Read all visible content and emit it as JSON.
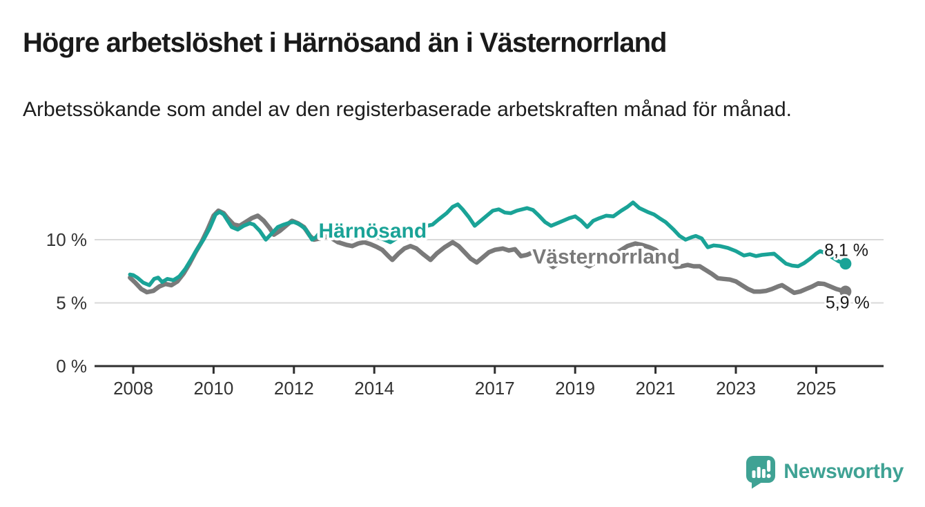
{
  "header": {
    "title": "Högre arbetslöshet i Härnösand än i Västernorrland",
    "subtitle": "Arbetssökande som andel av den registerbaserade arbetskraften månad för månad."
  },
  "chart_data": {
    "type": "line",
    "title": "Högre arbetslöshet i Härnösand än i Västernorrland",
    "subtitle": "Arbetssökande som andel av den registerbaserade arbetskraften månad för månad.",
    "xlabel": "",
    "ylabel": "",
    "xlim": [
      2007.038,
      2026.677
    ],
    "ylim": [
      0,
      14.32
    ],
    "grid": "horizontal",
    "legend_position": "inline-labels",
    "axis_color": "#2e2e2e",
    "grid_color": "#d9d9d9",
    "tick_label_color": "#333333",
    "value_label_color": "#1a1a1a",
    "x_ticks": [
      {
        "value": 2008,
        "label": "2008"
      },
      {
        "value": 2010,
        "label": "2010"
      },
      {
        "value": 2012,
        "label": "2012"
      },
      {
        "value": 2014,
        "label": "2014"
      },
      {
        "value": 2017,
        "label": "2017"
      },
      {
        "value": 2019,
        "label": "2019"
      },
      {
        "value": 2021,
        "label": "2021"
      },
      {
        "value": 2023,
        "label": "2023"
      },
      {
        "value": 2025,
        "label": "2025"
      }
    ],
    "y_ticks": [
      {
        "value": 0,
        "label": "0 %"
      },
      {
        "value": 5,
        "label": "5 %"
      },
      {
        "value": 10,
        "label": "10 %"
      }
    ],
    "series": [
      {
        "name": "Härnösand",
        "color": "#1AA397",
        "line_width": 5.5,
        "label_pos": {
          "t": 2013.96,
          "v": 10.7
        },
        "end_label": "8,1 %",
        "end_label_pos": {
          "t": 2025.75,
          "v": 9.2
        },
        "end_dot": {
          "t": 2025.73,
          "v": 8.1,
          "radius": 8.5
        },
        "points": [
          [
            2007.92,
            7.25
          ],
          [
            2008.0,
            7.2
          ],
          [
            2008.1,
            7.0
          ],
          [
            2008.25,
            6.6
          ],
          [
            2008.4,
            6.4
          ],
          [
            2008.52,
            6.9
          ],
          [
            2008.62,
            7.0
          ],
          [
            2008.72,
            6.65
          ],
          [
            2008.85,
            6.9
          ],
          [
            2009.0,
            6.8
          ],
          [
            2009.15,
            7.1
          ],
          [
            2009.3,
            7.7
          ],
          [
            2009.45,
            8.5
          ],
          [
            2009.6,
            9.3
          ],
          [
            2009.75,
            10.0
          ],
          [
            2009.9,
            10.9
          ],
          [
            2010.05,
            12.0
          ],
          [
            2010.15,
            12.2
          ],
          [
            2010.25,
            12.0
          ],
          [
            2010.35,
            11.5
          ],
          [
            2010.45,
            11.0
          ],
          [
            2010.6,
            10.8
          ],
          [
            2010.75,
            11.1
          ],
          [
            2010.9,
            11.3
          ],
          [
            2011.0,
            11.2
          ],
          [
            2011.15,
            10.7
          ],
          [
            2011.3,
            10.0
          ],
          [
            2011.45,
            10.5
          ],
          [
            2011.6,
            11.0
          ],
          [
            2011.75,
            11.2
          ],
          [
            2011.9,
            11.35
          ],
          [
            2012.0,
            11.4
          ],
          [
            2012.15,
            11.2
          ],
          [
            2012.3,
            10.8
          ],
          [
            2012.45,
            10.0
          ],
          [
            2012.55,
            10.2
          ],
          [
            2012.7,
            10.8
          ],
          [
            2012.85,
            10.6
          ],
          [
            2013.0,
            10.3
          ],
          [
            2013.15,
            10.2
          ],
          [
            2013.3,
            10.4
          ],
          [
            2013.5,
            10.6
          ],
          [
            2013.65,
            10.75
          ],
          [
            2013.8,
            10.6
          ],
          [
            2013.95,
            10.45
          ],
          [
            2014.1,
            10.2
          ],
          [
            2014.25,
            10.0
          ],
          [
            2014.4,
            9.8
          ],
          [
            2014.55,
            10.1
          ],
          [
            2014.7,
            10.4
          ],
          [
            2014.85,
            10.7
          ],
          [
            2015.0,
            10.9
          ],
          [
            2015.2,
            11.0
          ],
          [
            2015.45,
            11.2
          ],
          [
            2015.6,
            11.6
          ],
          [
            2015.8,
            12.1
          ],
          [
            2015.95,
            12.6
          ],
          [
            2016.08,
            12.8
          ],
          [
            2016.2,
            12.4
          ],
          [
            2016.35,
            11.8
          ],
          [
            2016.5,
            11.1
          ],
          [
            2016.65,
            11.5
          ],
          [
            2016.8,
            11.9
          ],
          [
            2016.95,
            12.3
          ],
          [
            2017.1,
            12.4
          ],
          [
            2017.25,
            12.15
          ],
          [
            2017.4,
            12.1
          ],
          [
            2017.55,
            12.3
          ],
          [
            2017.8,
            12.5
          ],
          [
            2017.95,
            12.35
          ],
          [
            2018.1,
            11.9
          ],
          [
            2018.25,
            11.4
          ],
          [
            2018.4,
            11.1
          ],
          [
            2018.55,
            11.3
          ],
          [
            2018.7,
            11.5
          ],
          [
            2018.85,
            11.7
          ],
          [
            2019.0,
            11.85
          ],
          [
            2019.15,
            11.5
          ],
          [
            2019.3,
            11.0
          ],
          [
            2019.45,
            11.5
          ],
          [
            2019.6,
            11.7
          ],
          [
            2019.77,
            11.9
          ],
          [
            2019.95,
            11.85
          ],
          [
            2020.15,
            12.3
          ],
          [
            2020.3,
            12.6
          ],
          [
            2020.44,
            12.95
          ],
          [
            2020.6,
            12.5
          ],
          [
            2020.8,
            12.2
          ],
          [
            2020.96,
            12.0
          ],
          [
            2021.1,
            11.7
          ],
          [
            2021.25,
            11.4
          ],
          [
            2021.45,
            10.8
          ],
          [
            2021.6,
            10.3
          ],
          [
            2021.75,
            10.0
          ],
          [
            2021.9,
            10.2
          ],
          [
            2022.0,
            10.3
          ],
          [
            2022.15,
            10.1
          ],
          [
            2022.3,
            9.4
          ],
          [
            2022.45,
            9.55
          ],
          [
            2022.6,
            9.5
          ],
          [
            2022.8,
            9.35
          ],
          [
            2023.0,
            9.1
          ],
          [
            2023.2,
            8.75
          ],
          [
            2023.35,
            8.85
          ],
          [
            2023.5,
            8.7
          ],
          [
            2023.65,
            8.8
          ],
          [
            2023.8,
            8.85
          ],
          [
            2023.95,
            8.9
          ],
          [
            2024.1,
            8.5
          ],
          [
            2024.25,
            8.1
          ],
          [
            2024.4,
            7.95
          ],
          [
            2024.55,
            7.9
          ],
          [
            2024.7,
            8.15
          ],
          [
            2024.85,
            8.5
          ],
          [
            2025.0,
            8.9
          ],
          [
            2025.1,
            9.1
          ],
          [
            2025.25,
            8.9
          ],
          [
            2025.4,
            8.6
          ],
          [
            2025.55,
            8.3
          ],
          [
            2025.73,
            8.1
          ]
        ]
      },
      {
        "name": "Västernorrland",
        "color": "#7A7A7A",
        "line_width": 6.5,
        "label_pos": {
          "t": 2019.77,
          "v": 8.65
        },
        "end_label": "5,9 %",
        "end_label_pos": {
          "t": 2025.78,
          "v": 5.05
        },
        "end_dot": {
          "t": 2025.73,
          "v": 5.9,
          "radius": 8.5
        },
        "points": [
          [
            2007.92,
            7.0
          ],
          [
            2008.05,
            6.6
          ],
          [
            2008.2,
            6.1
          ],
          [
            2008.34,
            5.85
          ],
          [
            2008.5,
            5.95
          ],
          [
            2008.65,
            6.3
          ],
          [
            2008.8,
            6.5
          ],
          [
            2008.95,
            6.4
          ],
          [
            2009.1,
            6.7
          ],
          [
            2009.25,
            7.3
          ],
          [
            2009.4,
            8.1
          ],
          [
            2009.55,
            9.0
          ],
          [
            2009.7,
            9.8
          ],
          [
            2009.85,
            10.8
          ],
          [
            2010.0,
            11.9
          ],
          [
            2010.12,
            12.3
          ],
          [
            2010.25,
            12.1
          ],
          [
            2010.35,
            11.7
          ],
          [
            2010.5,
            11.2
          ],
          [
            2010.65,
            11.1
          ],
          [
            2010.8,
            11.4
          ],
          [
            2010.95,
            11.7
          ],
          [
            2011.1,
            11.9
          ],
          [
            2011.25,
            11.5
          ],
          [
            2011.4,
            10.9
          ],
          [
            2011.5,
            10.4
          ],
          [
            2011.65,
            10.7
          ],
          [
            2011.8,
            11.1
          ],
          [
            2011.95,
            11.5
          ],
          [
            2012.1,
            11.3
          ],
          [
            2012.25,
            11.0
          ],
          [
            2012.4,
            10.3
          ],
          [
            2012.5,
            10.0
          ],
          [
            2012.65,
            10.1
          ],
          [
            2012.8,
            10.25
          ],
          [
            2012.95,
            10.1
          ],
          [
            2013.1,
            9.8
          ],
          [
            2013.3,
            9.6
          ],
          [
            2013.45,
            9.5
          ],
          [
            2013.6,
            9.7
          ],
          [
            2013.75,
            9.8
          ],
          [
            2013.9,
            9.65
          ],
          [
            2014.05,
            9.45
          ],
          [
            2014.2,
            9.2
          ],
          [
            2014.35,
            8.7
          ],
          [
            2014.45,
            8.4
          ],
          [
            2014.6,
            8.9
          ],
          [
            2014.75,
            9.3
          ],
          [
            2014.9,
            9.5
          ],
          [
            2015.05,
            9.3
          ],
          [
            2015.2,
            8.9
          ],
          [
            2015.4,
            8.4
          ],
          [
            2015.55,
            8.9
          ],
          [
            2015.75,
            9.4
          ],
          [
            2015.95,
            9.8
          ],
          [
            2016.1,
            9.5
          ],
          [
            2016.25,
            9.0
          ],
          [
            2016.4,
            8.5
          ],
          [
            2016.55,
            8.2
          ],
          [
            2016.7,
            8.6
          ],
          [
            2016.85,
            9.0
          ],
          [
            2017.0,
            9.2
          ],
          [
            2017.2,
            9.3
          ],
          [
            2017.35,
            9.15
          ],
          [
            2017.5,
            9.25
          ],
          [
            2017.65,
            8.7
          ],
          [
            2017.8,
            8.8
          ],
          [
            2017.95,
            9.0
          ],
          [
            2018.1,
            8.8
          ],
          [
            2018.3,
            8.2
          ],
          [
            2018.45,
            7.85
          ],
          [
            2018.6,
            8.2
          ],
          [
            2018.75,
            8.5
          ],
          [
            2018.9,
            8.6
          ],
          [
            2019.05,
            8.4
          ],
          [
            2019.2,
            8.1
          ],
          [
            2019.35,
            7.9
          ],
          [
            2019.5,
            8.2
          ],
          [
            2019.65,
            8.4
          ],
          [
            2019.8,
            8.6
          ],
          [
            2019.95,
            8.8
          ],
          [
            2020.1,
            9.1
          ],
          [
            2020.3,
            9.5
          ],
          [
            2020.5,
            9.7
          ],
          [
            2020.65,
            9.6
          ],
          [
            2020.85,
            9.4
          ],
          [
            2021.0,
            9.2
          ],
          [
            2021.15,
            8.8
          ],
          [
            2021.3,
            8.4
          ],
          [
            2021.5,
            7.85
          ],
          [
            2021.65,
            7.9
          ],
          [
            2021.8,
            8.0
          ],
          [
            2021.95,
            7.9
          ],
          [
            2022.1,
            7.9
          ],
          [
            2022.25,
            7.6
          ],
          [
            2022.4,
            7.3
          ],
          [
            2022.55,
            6.95
          ],
          [
            2022.7,
            6.9
          ],
          [
            2022.85,
            6.85
          ],
          [
            2023.0,
            6.7
          ],
          [
            2023.15,
            6.4
          ],
          [
            2023.3,
            6.1
          ],
          [
            2023.45,
            5.9
          ],
          [
            2023.6,
            5.9
          ],
          [
            2023.75,
            5.95
          ],
          [
            2023.9,
            6.1
          ],
          [
            2024.05,
            6.3
          ],
          [
            2024.15,
            6.4
          ],
          [
            2024.3,
            6.1
          ],
          [
            2024.45,
            5.8
          ],
          [
            2024.6,
            5.9
          ],
          [
            2024.75,
            6.1
          ],
          [
            2024.9,
            6.3
          ],
          [
            2025.05,
            6.55
          ],
          [
            2025.2,
            6.5
          ],
          [
            2025.35,
            6.3
          ],
          [
            2025.5,
            6.1
          ],
          [
            2025.73,
            5.9
          ]
        ]
      }
    ]
  },
  "footer": {
    "brand": "Newsworthy",
    "brand_color": "#3FA294",
    "logo_icon": "speech-bubble-bar-chart-icon"
  }
}
